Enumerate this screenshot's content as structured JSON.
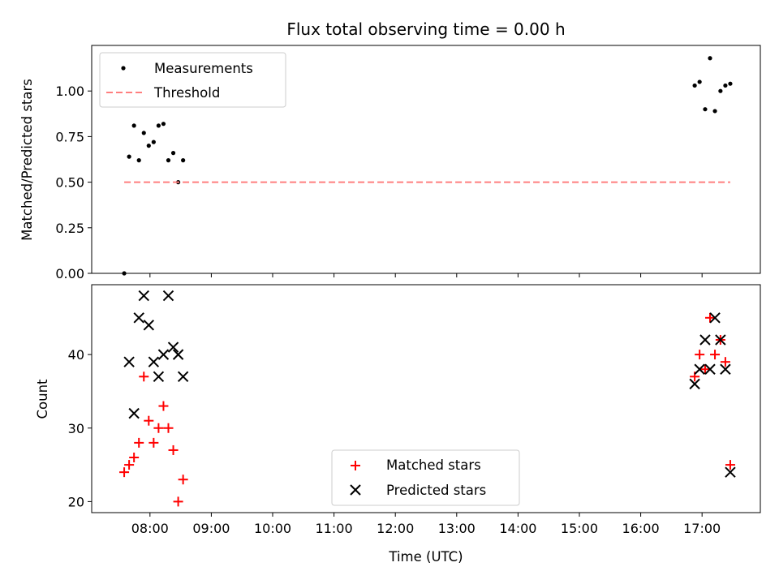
{
  "chart_data": [
    {
      "type": "scatter",
      "title": "Flux total observing time = 0.00 h",
      "xlabel": "",
      "ylabel": "Matched/Predicted stars",
      "ylim": [
        0,
        1.25
      ],
      "yticks": [
        0.0,
        0.25,
        0.5,
        0.75,
        1.0
      ],
      "ytick_labels": [
        "0.00",
        "0.25",
        "0.50",
        "0.75",
        "1.00"
      ],
      "xlim_hours": [
        7.05,
        17.95
      ],
      "xticks_hours": [
        8,
        9,
        10,
        11,
        12,
        13,
        14,
        15,
        16,
        17
      ],
      "legend_position": "upper-left",
      "series": [
        {
          "name": "Measurements",
          "marker": "dot",
          "color": "#000000",
          "x_hours": [
            7.58,
            7.66,
            7.74,
            7.82,
            7.9,
            7.98,
            8.06,
            8.14,
            8.22,
            8.3,
            8.38,
            8.46,
            8.54,
            16.88,
            16.96,
            17.05,
            17.13,
            17.21,
            17.3,
            17.38,
            17.46
          ],
          "y": [
            0.0,
            0.64,
            0.81,
            0.62,
            0.77,
            0.7,
            0.72,
            0.81,
            0.82,
            0.62,
            0.66,
            0.5,
            0.62,
            1.03,
            1.05,
            0.9,
            1.18,
            0.89,
            1.0,
            1.03,
            1.04
          ]
        },
        {
          "name": "Threshold",
          "marker": "dashed-line",
          "color": "#ff7f7f",
          "x_hours": [
            7.58,
            17.46
          ],
          "y": [
            0.5,
            0.5
          ]
        }
      ]
    },
    {
      "type": "scatter",
      "title": "",
      "xlabel": "Time (UTC)",
      "ylabel": "Count",
      "ylim": [
        18.5,
        49.5
      ],
      "yticks": [
        20,
        30,
        40
      ],
      "ytick_labels": [
        "20",
        "30",
        "40"
      ],
      "xlim_hours": [
        7.05,
        17.95
      ],
      "xticks_hours": [
        8,
        9,
        10,
        11,
        12,
        13,
        14,
        15,
        16,
        17
      ],
      "xtick_labels": [
        "08:00",
        "09:00",
        "10:00",
        "11:00",
        "12:00",
        "13:00",
        "14:00",
        "15:00",
        "16:00",
        "17:00"
      ],
      "legend_position": "lower-center",
      "series": [
        {
          "name": "Matched stars",
          "marker": "plus",
          "color": "#ff0000",
          "x_hours": [
            7.58,
            7.66,
            7.74,
            7.82,
            7.9,
            7.98,
            8.06,
            8.14,
            8.22,
            8.3,
            8.38,
            8.46,
            8.54,
            16.88,
            16.96,
            17.05,
            17.13,
            17.21,
            17.3,
            17.38,
            17.46
          ],
          "y": [
            24,
            25,
            26,
            28,
            37,
            31,
            28,
            30,
            33,
            30,
            27,
            20,
            23,
            37,
            40,
            38,
            45,
            40,
            42,
            39,
            25
          ]
        },
        {
          "name": "Predicted stars",
          "marker": "x",
          "color": "#000000",
          "x_hours": [
            7.66,
            7.74,
            7.82,
            7.9,
            7.98,
            8.06,
            8.14,
            8.22,
            8.3,
            8.38,
            8.46,
            8.54,
            16.88,
            16.96,
            17.05,
            17.13,
            17.21,
            17.3,
            17.38,
            17.46
          ],
          "y": [
            39,
            32,
            45,
            48,
            44,
            39,
            37,
            40,
            48,
            41,
            40,
            37,
            36,
            38,
            42,
            38,
            45,
            42,
            38,
            24
          ]
        }
      ]
    }
  ]
}
